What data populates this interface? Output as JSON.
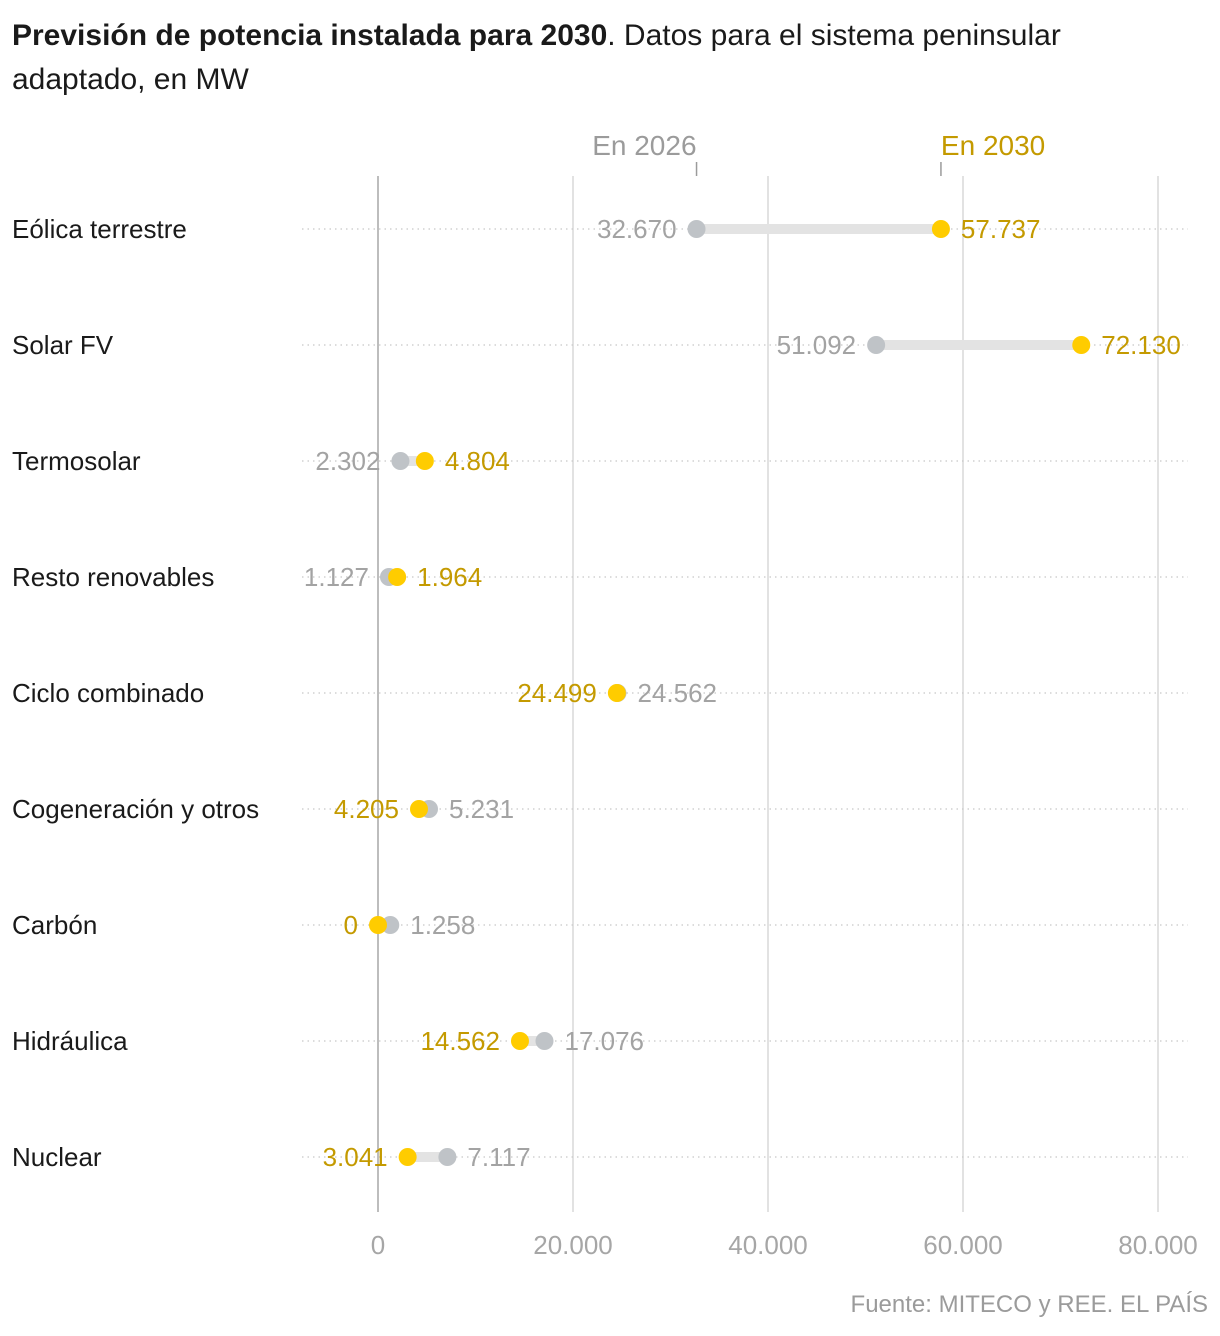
{
  "title": {
    "bold": "Previsión de potencia instalada para 2030",
    "rest": ". Datos para el sistema peninsular adaptado, en MW"
  },
  "source": "Fuente: MITECO y REE. EL PAÍS",
  "colors": {
    "series_2026": "#bfc3c7",
    "series_2030": "#ffcc00",
    "label_2030": "#c49a00",
    "label_2026": "#a3a3a3",
    "connector": "#e3e3e3",
    "gridline": "#d9d9d9",
    "zero_line": "#bdbdbd"
  },
  "chart_data": {
    "type": "dumbbell",
    "title": "Previsión de potencia instalada para 2030",
    "unit": "MW",
    "xlim": [
      0,
      80000
    ],
    "x_ticks": [
      0,
      20000,
      40000,
      60000,
      80000
    ],
    "x_tick_labels": [
      "0",
      "20.000",
      "40.000",
      "60.000",
      "80.000"
    ],
    "grid": true,
    "categories": [
      "Eólica terrestre",
      "Solar FV",
      "Termosolar",
      "Resto renovables",
      "Ciclo combinado",
      "Cogeneración y otros",
      "Carbón",
      "Hidráulica",
      "Nuclear"
    ],
    "series": [
      {
        "name": "En 2026",
        "values": [
          32670,
          51092,
          2302,
          1127,
          24562,
          5231,
          1258,
          17076,
          7117
        ],
        "labels": [
          "32.670",
          "51.092",
          "2.302",
          "1.127",
          "24.562",
          "5.231",
          "1.258",
          "17.076",
          "7.117"
        ]
      },
      {
        "name": "En 2030",
        "values": [
          57737,
          72130,
          4804,
          1964,
          24499,
          4205,
          0,
          14562,
          3041
        ],
        "labels": [
          "57.737",
          "72.130",
          "4.804",
          "1.964",
          "24.499",
          "4.205",
          "0",
          "14.562",
          "3.041"
        ]
      }
    ]
  }
}
